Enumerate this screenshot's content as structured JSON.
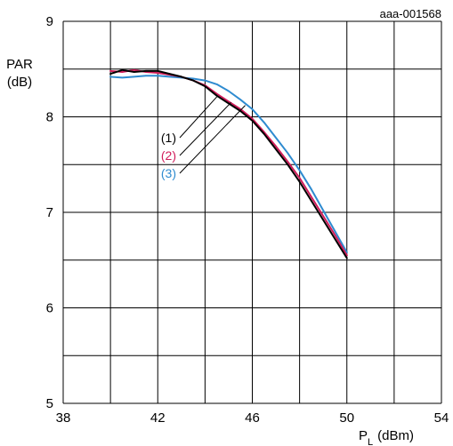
{
  "chart_data": {
    "type": "line",
    "reference_code": "aaa-001568",
    "ylabel_line1": "PAR",
    "ylabel_line2": "(dB)",
    "xlabel_main": "P",
    "xlabel_sub": "L",
    "xlabel_unit": "(dBm)",
    "xlim": [
      38,
      54
    ],
    "ylim": [
      5,
      9
    ],
    "xticks": [
      38,
      42,
      46,
      50,
      54
    ],
    "yticks": [
      5,
      6,
      7,
      8,
      9
    ],
    "x_grid_step": 2,
    "y_grid_step": 0.5,
    "grid": true,
    "series": [
      {
        "name": "(1)",
        "color": "#000000",
        "x": [
          40.0,
          40.5,
          41.0,
          41.5,
          42.0,
          42.5,
          43.0,
          43.5,
          44.0,
          44.5,
          45.0,
          45.5,
          46.0,
          46.5,
          47.0,
          47.5,
          48.0,
          48.5,
          49.0,
          49.5,
          50.0
        ],
        "y": [
          8.45,
          8.49,
          8.47,
          8.48,
          8.48,
          8.45,
          8.42,
          8.38,
          8.32,
          8.22,
          8.14,
          8.06,
          7.96,
          7.82,
          7.66,
          7.5,
          7.32,
          7.12,
          6.92,
          6.72,
          6.52
        ]
      },
      {
        "name": "(2)",
        "color": "#d01c5a",
        "x": [
          40.0,
          40.5,
          41.0,
          41.5,
          42.0,
          42.5,
          43.0,
          43.5,
          44.0,
          44.5,
          45.0,
          45.5,
          46.0,
          46.5,
          47.0,
          47.5,
          48.0,
          48.5,
          49.0,
          49.5,
          50.0
        ],
        "y": [
          8.48,
          8.47,
          8.49,
          8.47,
          8.46,
          8.44,
          8.42,
          8.38,
          8.33,
          8.24,
          8.16,
          8.08,
          7.98,
          7.84,
          7.69,
          7.53,
          7.36,
          7.16,
          6.96,
          6.76,
          6.55
        ]
      },
      {
        "name": "(3)",
        "color": "#2e8bd0",
        "x": [
          40.0,
          40.5,
          41.0,
          41.5,
          42.0,
          42.5,
          43.0,
          43.5,
          44.0,
          44.5,
          45.0,
          45.5,
          46.0,
          46.5,
          47.0,
          47.5,
          48.0,
          48.5,
          49.0,
          49.5,
          50.0
        ],
        "y": [
          8.42,
          8.41,
          8.42,
          8.43,
          8.43,
          8.42,
          8.41,
          8.4,
          8.38,
          8.34,
          8.27,
          8.18,
          8.08,
          7.94,
          7.78,
          7.62,
          7.44,
          7.24,
          7.02,
          6.8,
          6.58
        ]
      }
    ]
  }
}
